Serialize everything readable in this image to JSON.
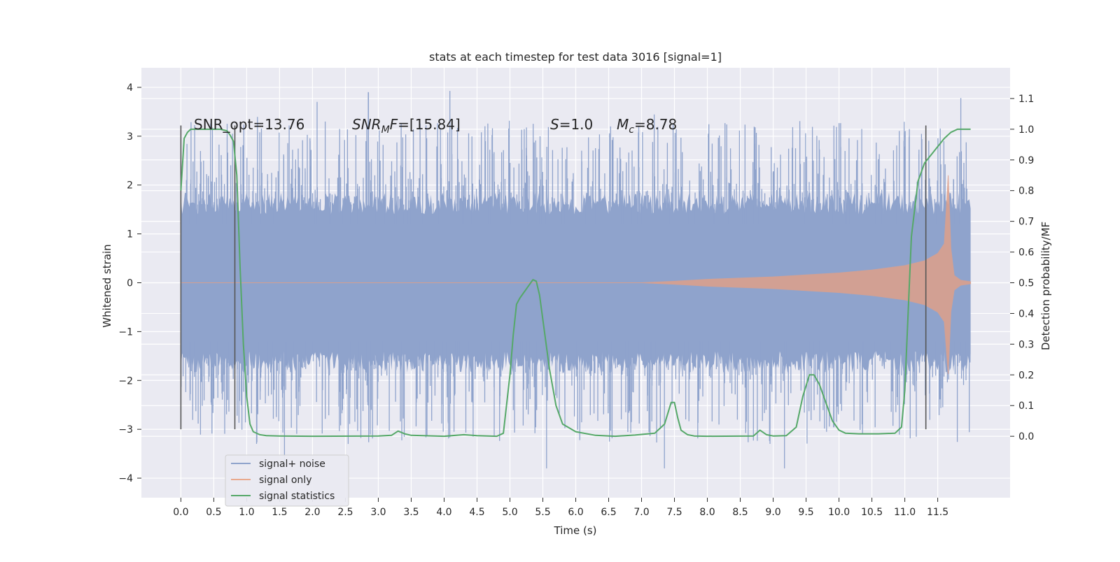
{
  "chart_data": {
    "type": "line",
    "title": "stats at each timestep for test data 3016 [signal=1]",
    "xlabel": "Time (s)",
    "ylabel_left": "Whitened strain",
    "ylabel_right": "Detection probability/MF",
    "xlim": [
      -0.6,
      12.6
    ],
    "ylim_left": [
      -4.4,
      4.4
    ],
    "ylim_right": [
      -0.2,
      1.2
    ],
    "x_ticks": [
      "0.0",
      "0.5",
      "1.0",
      "1.5",
      "2.0",
      "2.5",
      "3.0",
      "3.5",
      "4.0",
      "4.5",
      "5.0",
      "5.5",
      "6.0",
      "6.5",
      "7.0",
      "7.5",
      "8.0",
      "8.5",
      "9.0",
      "9.5",
      "10.0",
      "10.5",
      "11.0",
      "11.5"
    ],
    "y_ticks_left": [
      "−4",
      "−3",
      "−2",
      "−1",
      "0",
      "1",
      "2",
      "3",
      "4"
    ],
    "y_ticks_right": [
      "0.0",
      "0.1",
      "0.2",
      "0.3",
      "0.4",
      "0.5",
      "0.6",
      "0.7",
      "0.8",
      "0.9",
      "1.0",
      "1.1"
    ],
    "grid": true,
    "legend_position": "lower-left",
    "annotations": {
      "snr_opt": "SNR_opt=13.76",
      "snr_mf_label": "SNR",
      "snr_mf_sub": "M",
      "snr_mf_rest": "F=[15.84]",
      "s_label": "S",
      "s_rest": "=1.0",
      "mc_label": "M",
      "mc_sub": "c",
      "mc_rest": "=8.78"
    },
    "vertical_markers": [
      {
        "x": 0.0,
        "y_range": [
          -3.0,
          3.22
        ]
      },
      {
        "x": 0.82,
        "y_range": [
          -3.0,
          3.22
        ]
      },
      {
        "x": 11.32,
        "y_range": [
          -3.0,
          3.22
        ]
      }
    ],
    "series": [
      {
        "name": "signal+ noise",
        "color": "#8fa3cc",
        "axis": "left",
        "x_range": [
          0.0,
          12.0
        ],
        "typical_range": [
          -1.4,
          1.4
        ],
        "max_extent": [
          -3.8,
          4.1
        ]
      },
      {
        "name": "signal only",
        "color": "#dd8452",
        "axis": "left",
        "x_range": [
          0.0,
          12.0
        ],
        "envelope": {
          "x": [
            0.0,
            7.0,
            7.5,
            8.0,
            9.0,
            10.0,
            10.5,
            11.0,
            11.3,
            11.5,
            11.6,
            11.66,
            11.7,
            11.75,
            11.85,
            12.0
          ],
          "amplitude": [
            0.0,
            0.0,
            0.03,
            0.07,
            0.12,
            0.2,
            0.26,
            0.35,
            0.45,
            0.6,
            0.8,
            2.2,
            0.7,
            0.15,
            0.05,
            0.02
          ]
        }
      },
      {
        "name": "signal statistics",
        "color": "#55a868",
        "axis": "right",
        "x": [
          0.0,
          0.05,
          0.1,
          0.15,
          0.2,
          0.3,
          0.45,
          0.6,
          0.7,
          0.75,
          0.8,
          0.85,
          0.9,
          0.95,
          1.0,
          1.05,
          1.1,
          1.2,
          1.3,
          1.5,
          2.0,
          3.0,
          3.2,
          3.3,
          3.4,
          3.5,
          4.0,
          4.3,
          4.5,
          4.8,
          4.9,
          5.0,
          5.05,
          5.1,
          5.15,
          5.25,
          5.35,
          5.4,
          5.45,
          5.5,
          5.6,
          5.7,
          5.8,
          6.0,
          6.3,
          6.6,
          6.9,
          7.2,
          7.35,
          7.45,
          7.5,
          7.55,
          7.6,
          7.7,
          7.8,
          8.0,
          8.7,
          8.8,
          8.9,
          9.0,
          9.2,
          9.35,
          9.45,
          9.55,
          9.62,
          9.7,
          9.8,
          9.9,
          10.0,
          10.1,
          10.3,
          10.6,
          10.85,
          10.95,
          11.0,
          11.05,
          11.1,
          11.2,
          11.3,
          11.45,
          11.6,
          11.7,
          11.8,
          11.9,
          12.0
        ],
        "values": [
          0.8,
          0.97,
          0.99,
          1.0,
          1.0,
          1.0,
          1.0,
          1.0,
          0.995,
          0.98,
          0.96,
          0.85,
          0.55,
          0.3,
          0.13,
          0.04,
          0.015,
          0.005,
          0.002,
          0.001,
          0.0,
          0.001,
          0.003,
          0.017,
          0.008,
          0.003,
          0.0,
          0.005,
          0.002,
          0.0,
          0.01,
          0.2,
          0.33,
          0.43,
          0.45,
          0.48,
          0.51,
          0.505,
          0.46,
          0.38,
          0.22,
          0.1,
          0.04,
          0.015,
          0.003,
          0.0,
          0.004,
          0.01,
          0.04,
          0.11,
          0.11,
          0.06,
          0.02,
          0.005,
          0.001,
          0.0,
          0.001,
          0.02,
          0.005,
          0.001,
          0.002,
          0.03,
          0.13,
          0.2,
          0.2,
          0.17,
          0.11,
          0.05,
          0.02,
          0.01,
          0.008,
          0.008,
          0.01,
          0.03,
          0.15,
          0.4,
          0.65,
          0.83,
          0.89,
          0.93,
          0.97,
          0.99,
          1.0,
          1.0,
          1.0
        ]
      }
    ]
  }
}
